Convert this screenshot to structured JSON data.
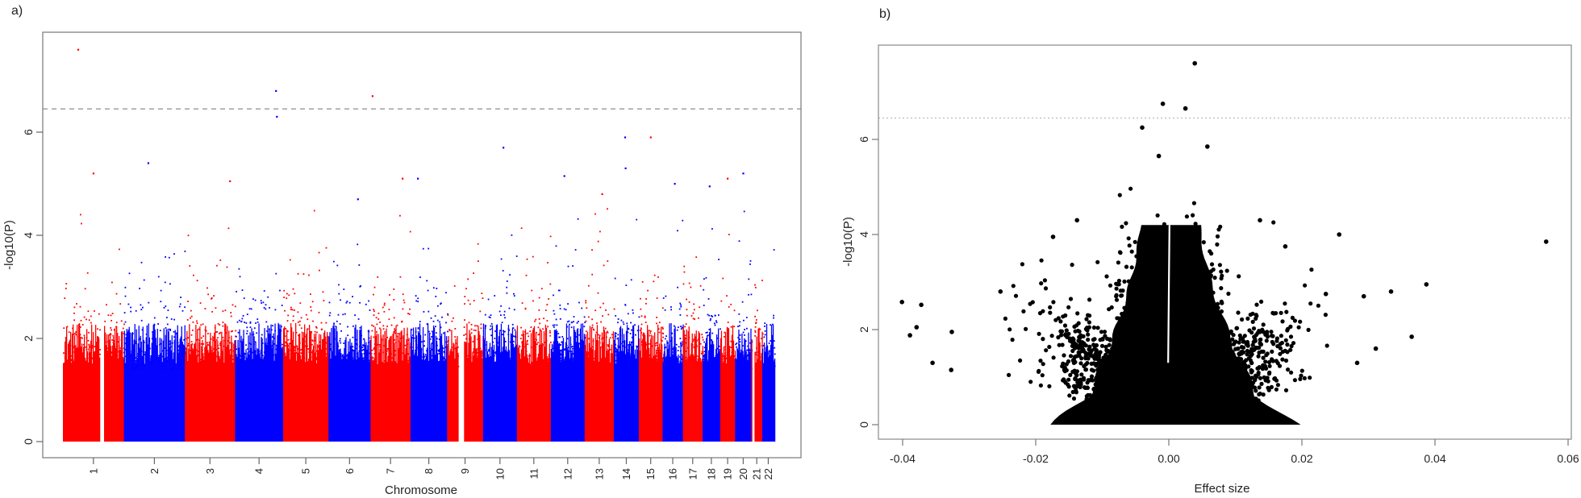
{
  "chart_data": [
    {
      "panel_label": "a)",
      "type": "scatter",
      "subtype": "manhattan",
      "xlabel": "Chromosome",
      "ylabel": "-log10(P)",
      "ylim": [
        0,
        7.6
      ],
      "yticks": [
        0,
        2,
        4,
        6
      ],
      "threshold": 6.45,
      "threshold_style": "dashed",
      "colors": {
        "odd": "#ff0000",
        "even": "#0000ff",
        "threshold": "#a0a0a0"
      },
      "chromosomes": [
        {
          "label": "1",
          "start": 0.0,
          "end": 9.0,
          "color": "odd"
        },
        {
          "label": "2",
          "start": 9.0,
          "end": 18.0,
          "color": "even"
        },
        {
          "label": "3",
          "start": 18.0,
          "end": 25.4,
          "color": "odd"
        },
        {
          "label": "4",
          "start": 25.4,
          "end": 32.5,
          "color": "even"
        },
        {
          "label": "5",
          "start": 32.5,
          "end": 39.2,
          "color": "odd"
        },
        {
          "label": "6",
          "start": 39.2,
          "end": 45.4,
          "color": "even"
        },
        {
          "label": "7",
          "start": 45.4,
          "end": 51.3,
          "color": "odd"
        },
        {
          "label": "8",
          "start": 51.3,
          "end": 56.7,
          "color": "even"
        },
        {
          "label": "9",
          "start": 56.7,
          "end": 62.0,
          "color": "odd"
        },
        {
          "label": "10",
          "start": 62.0,
          "end": 67.0,
          "color": "even"
        },
        {
          "label": "11",
          "start": 67.0,
          "end": 72.0,
          "color": "odd"
        },
        {
          "label": "12",
          "start": 72.0,
          "end": 77.0,
          "color": "even"
        },
        {
          "label": "13",
          "start": 77.0,
          "end": 81.3,
          "color": "odd"
        },
        {
          "label": "14",
          "start": 81.3,
          "end": 85.0,
          "color": "even"
        },
        {
          "label": "15",
          "start": 85.0,
          "end": 88.5,
          "color": "odd"
        },
        {
          "label": "16",
          "start": 88.5,
          "end": 91.5,
          "color": "even"
        },
        {
          "label": "17",
          "start": 91.5,
          "end": 94.4,
          "color": "odd"
        },
        {
          "label": "18",
          "start": 94.4,
          "end": 97.0,
          "color": "even"
        },
        {
          "label": "19",
          "start": 97.0,
          "end": 99.2,
          "color": "odd"
        },
        {
          "label": "20",
          "start": 99.2,
          "end": 101.6,
          "color": "even"
        },
        {
          "label": "21",
          "start": 101.6,
          "end": 103.2,
          "color": "odd"
        },
        {
          "label": "22",
          "start": 103.2,
          "end": 105.0,
          "color": "even"
        }
      ],
      "peaks": [
        {
          "chr": "1",
          "pos": 0.25,
          "y": 7.6
        },
        {
          "chr": "1",
          "pos": 0.5,
          "y": 5.2
        },
        {
          "chr": "2",
          "pos": 0.4,
          "y": 5.4
        },
        {
          "chr": "3",
          "pos": 0.9,
          "y": 5.05
        },
        {
          "chr": "4",
          "pos": 0.85,
          "y": 6.8
        },
        {
          "chr": "4",
          "pos": 0.87,
          "y": 6.3
        },
        {
          "chr": "6",
          "pos": 0.7,
          "y": 4.7
        },
        {
          "chr": "7",
          "pos": 0.05,
          "y": 6.7
        },
        {
          "chr": "7",
          "pos": 0.8,
          "y": 5.1
        },
        {
          "chr": "8",
          "pos": 0.2,
          "y": 5.1
        },
        {
          "chr": "10",
          "pos": 0.6,
          "y": 5.7
        },
        {
          "chr": "12",
          "pos": 0.4,
          "y": 5.15
        },
        {
          "chr": "13",
          "pos": 0.6,
          "y": 4.8
        },
        {
          "chr": "14",
          "pos": 0.45,
          "y": 5.9
        },
        {
          "chr": "14",
          "pos": 0.47,
          "y": 5.3
        },
        {
          "chr": "15",
          "pos": 0.5,
          "y": 5.9
        },
        {
          "chr": "16",
          "pos": 0.6,
          "y": 5.0
        },
        {
          "chr": "18",
          "pos": 0.4,
          "y": 4.95
        },
        {
          "chr": "19",
          "pos": 0.5,
          "y": 5.1
        },
        {
          "chr": "20",
          "pos": 0.5,
          "y": 5.2
        }
      ]
    },
    {
      "panel_label": "b)",
      "type": "scatter",
      "subtype": "volcano",
      "xlabel": "Effect size",
      "ylabel": "-log10(P)",
      "xlim": [
        -0.043,
        0.061
      ],
      "ylim": [
        -0.3,
        7.8
      ],
      "xticks": [
        "-0.04",
        "-0.02",
        "0.00",
        "0.02",
        "0.04",
        "0.06"
      ],
      "xtick_values": [
        -0.04,
        -0.02,
        0.0,
        0.02,
        0.04,
        0.06
      ],
      "yticks": [
        0,
        2,
        4,
        6
      ],
      "threshold": 6.45,
      "threshold_style": "dotted",
      "colors": {
        "points": "#000000",
        "threshold": "#b0b0b0"
      },
      "outliers": [
        {
          "x": 0.0039,
          "y": 7.6
        },
        {
          "x": -0.0009,
          "y": 6.75
        },
        {
          "x": 0.0025,
          "y": 6.65
        },
        {
          "x": -0.004,
          "y": 6.25
        },
        {
          "x": 0.0058,
          "y": 5.85
        },
        {
          "x": -0.0015,
          "y": 5.65
        },
        {
          "x": 0.0567,
          "y": 3.85
        },
        {
          "x": 0.0387,
          "y": 2.95
        },
        {
          "x": 0.0256,
          "y": 4.0
        },
        {
          "x": 0.0334,
          "y": 2.8
        },
        {
          "x": 0.0365,
          "y": 1.85
        },
        {
          "x": 0.0311,
          "y": 1.6
        },
        {
          "x": 0.0293,
          "y": 2.7
        },
        {
          "x": 0.0283,
          "y": 1.3
        },
        {
          "x": -0.0401,
          "y": 2.58
        },
        {
          "x": -0.0372,
          "y": 2.52
        },
        {
          "x": -0.0389,
          "y": 1.88
        },
        {
          "x": -0.0379,
          "y": 2.05
        },
        {
          "x": -0.0355,
          "y": 1.3
        },
        {
          "x": -0.0327,
          "y": 1.15
        },
        {
          "x": -0.0326,
          "y": 1.95
        },
        {
          "x": -0.0174,
          "y": 3.95
        },
        {
          "x": -0.0138,
          "y": 4.3
        },
        {
          "x": 0.0175,
          "y": 3.75
        },
        {
          "x": 0.0137,
          "y": 4.3
        },
        {
          "x": -0.0253,
          "y": 2.8
        },
        {
          "x": 0.0236,
          "y": 2.75
        }
      ]
    }
  ]
}
